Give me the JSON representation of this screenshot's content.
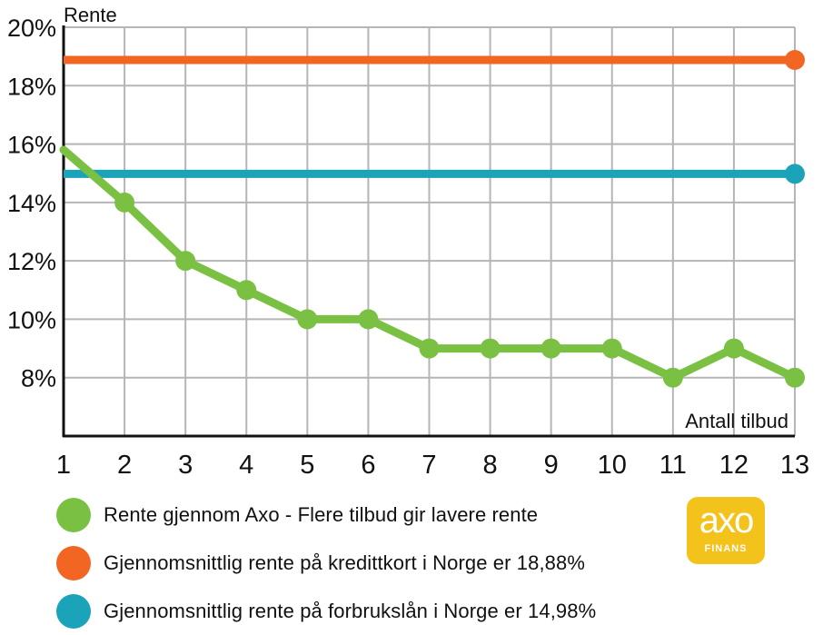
{
  "chart_data": {
    "type": "line",
    "ylabel": "Rente",
    "xlabel": "Antall tilbud",
    "x": [
      1,
      2,
      3,
      4,
      5,
      6,
      7,
      8,
      9,
      10,
      11,
      12,
      13
    ],
    "xlim": [
      1,
      13
    ],
    "ylim": [
      6,
      20
    ],
    "y_ticks": [
      "8%",
      "10%",
      "12%",
      "14%",
      "16%",
      "18%",
      "20%"
    ],
    "y_tick_values": [
      8,
      10,
      12,
      14,
      16,
      18,
      20
    ],
    "x_ticks": [
      "1",
      "2",
      "3",
      "4",
      "5",
      "6",
      "7",
      "8",
      "9",
      "10",
      "11",
      "12",
      "13"
    ],
    "grid": true,
    "series": [
      {
        "name": "Rente gjennom Axo - Flere tilbud gir lavere rente",
        "color": "#7ac143",
        "values": [
          15.8,
          14,
          12,
          11,
          10,
          10,
          9,
          9,
          9,
          9,
          8,
          9,
          8
        ]
      },
      {
        "name": "Gjennomsnittlig rente på kredittkort i Norge er 18,88%",
        "color": "#f26522",
        "values": [
          18.88,
          18.88,
          18.88,
          18.88,
          18.88,
          18.88,
          18.88,
          18.88,
          18.88,
          18.88,
          18.88,
          18.88,
          18.88
        ]
      },
      {
        "name": "Gjennomsnittlig rente på forbrukslån i Norge er 14,98%",
        "color": "#1ba3b9",
        "values": [
          14.98,
          14.98,
          14.98,
          14.98,
          14.98,
          14.98,
          14.98,
          14.98,
          14.98,
          14.98,
          14.98,
          14.98,
          14.98
        ]
      }
    ],
    "legend_position": "bottom-left"
  },
  "logo": {
    "word": "axo",
    "sub": "FINANS",
    "color": "#f3c21b"
  }
}
